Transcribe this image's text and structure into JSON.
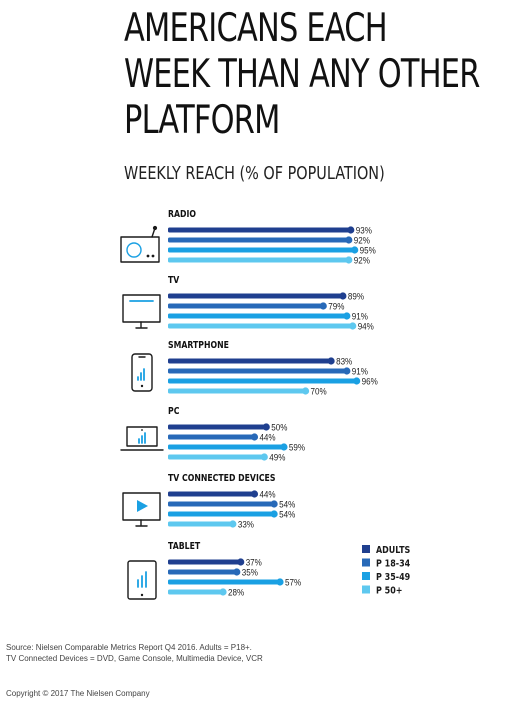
{
  "title_lines": [
    "AMERICANS EACH",
    "WEEK THAN ANY OTHER",
    "PLATFORM"
  ],
  "subtitle": "WEEKLY REACH (% OF POPULATION)",
  "colors": {
    "adults": "#1f3f8f",
    "p18_34": "#2769b8",
    "p35_49": "#1aa0e3",
    "p50_plus": "#5ec8ef",
    "icon": "#1a1a1a",
    "icon_accent": "#1aa0e3"
  },
  "chart_data": {
    "type": "bar",
    "orientation": "horizontal",
    "categories": [
      "RADIO",
      "TV",
      "SMARTPHONE",
      "PC",
      "TV CONNECTED DEVICES",
      "TABLET"
    ],
    "icons": [
      "radio-icon",
      "tv-icon",
      "smartphone-icon",
      "pc-icon",
      "tv-connected-devices-icon",
      "tablet-icon"
    ],
    "series": [
      {
        "name": "ADULTS",
        "color": "#1f3f8f",
        "values": [
          93,
          89,
          83,
          50,
          44,
          37
        ]
      },
      {
        "name": "P 18-34",
        "color": "#2769b8",
        "values": [
          92,
          79,
          91,
          44,
          54,
          35
        ]
      },
      {
        "name": "P 35-49",
        "color": "#1aa0e3",
        "values": [
          95,
          91,
          96,
          59,
          54,
          57
        ]
      },
      {
        "name": "P 50+",
        "color": "#5ec8ef",
        "values": [
          92,
          94,
          70,
          49,
          33,
          28
        ]
      }
    ],
    "value_suffix": "%",
    "xlim": [
      0,
      100
    ],
    "legend_position": "bottom-right",
    "grid": false
  },
  "footer": {
    "source_line1": "Source: Nielsen Comparable Metrics Report Q4 2016. Adults = P18+.",
    "source_line2": "TV Connected Devices = DVD, Game Console, Multimedia Device, VCR",
    "copyright": "Copyright © 2017 The Nielsen Company"
  }
}
